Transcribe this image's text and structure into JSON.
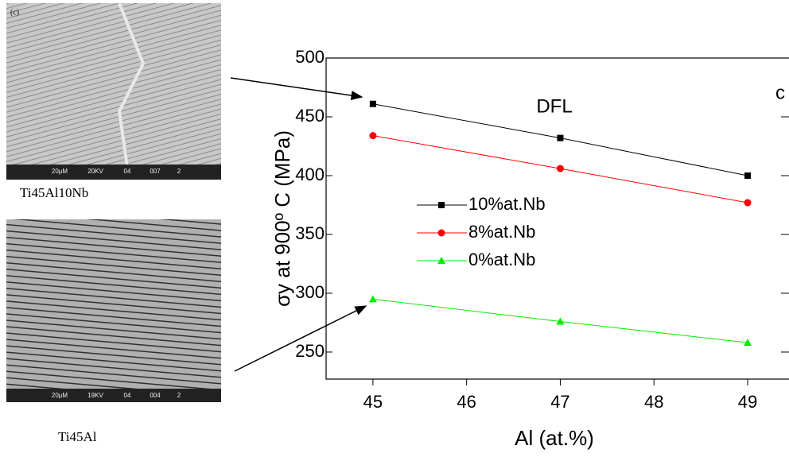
{
  "panels": [
    {
      "label": "(c)",
      "scale_bar": [
        "20µM",
        "20KV",
        "04",
        "007",
        "2"
      ],
      "caption": "Ti45Al10Nb"
    },
    {
      "label": null,
      "scale_bar": [
        "20µM",
        "19KV",
        "04",
        "004",
        "2"
      ],
      "caption": "Ti45Al"
    }
  ],
  "chart_data": {
    "type": "line",
    "title": "DFL",
    "corner_label": "c",
    "x_label": "Al (at.%)",
    "y_label": "σy at 900º C (MPa)",
    "x": [
      45,
      47,
      49
    ],
    "series": [
      {
        "name": "10%at.Nb",
        "color": "#000000",
        "marker": "square",
        "values": [
          461,
          432,
          400
        ]
      },
      {
        "name": "8%at.Nb",
        "color": "#ff0000",
        "marker": "circle",
        "values": [
          434,
          406,
          377
        ]
      },
      {
        "name": "0%at.Nb",
        "color": "#00ee00",
        "marker": "triangle",
        "values": [
          295,
          276,
          258
        ]
      }
    ],
    "xlim": [
      44.5,
      49.45
    ],
    "xticks": [
      45,
      46,
      47,
      48,
      49
    ],
    "ylim": [
      227,
      500
    ],
    "yticks": [
      250,
      300,
      350,
      400,
      450,
      500
    ]
  }
}
